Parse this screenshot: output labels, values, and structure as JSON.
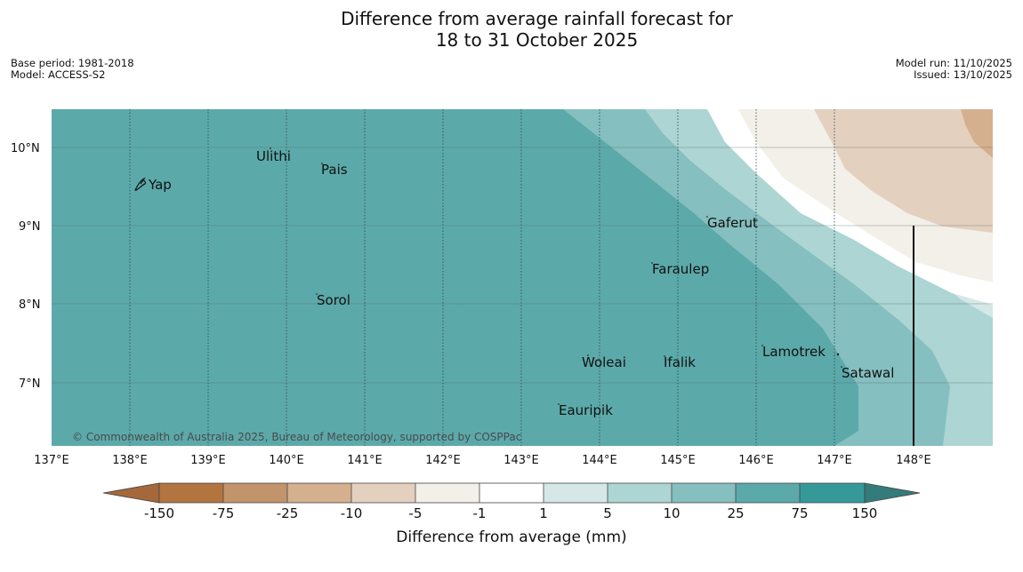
{
  "header": {
    "title": "Difference from average rainfall forecast for\n18 to 31 October 2025",
    "base_period": "Base period: 1981-2018",
    "model": "Model: ACCESS-S2",
    "model_run": "Model run: 11/10/2025",
    "issued": "Issued: 13/10/2025"
  },
  "map": {
    "lat_labels": [
      "10°N",
      "9°N",
      "8°N",
      "7°N"
    ],
    "lon_labels": [
      "137°E",
      "138°E",
      "139°E",
      "140°E",
      "141°E",
      "142°E",
      "143°E",
      "144°E",
      "145°E",
      "146°E",
      "147°E",
      "148°E"
    ],
    "places": [
      "Ulithi",
      "Pais",
      "Yap",
      "Gaferut",
      "Faraulep",
      "Sorol",
      "Lamotrek",
      "Woleai",
      "Ifalik",
      "Satawal",
      "Eauripik"
    ],
    "copyright": "© Commonwealth of Australia 2025, Bureau of Meteorology, supported by COSPPac"
  },
  "legend": {
    "title": "Difference from average (mm)",
    "tick_labels": [
      "-150",
      "-75",
      "-25",
      "-10",
      "-5",
      "-1",
      "1",
      "5",
      "10",
      "25",
      "75",
      "150"
    ],
    "colors": [
      "#a4683a",
      "#b27540",
      "#c2946c",
      "#d5b08e",
      "#e4d0bf",
      "#f3efe9",
      "#ffffff",
      "#d5e8e7",
      "#acd5d4",
      "#85bfbf",
      "#5ca9aa",
      "#35999a",
      "#347b7b"
    ]
  }
}
